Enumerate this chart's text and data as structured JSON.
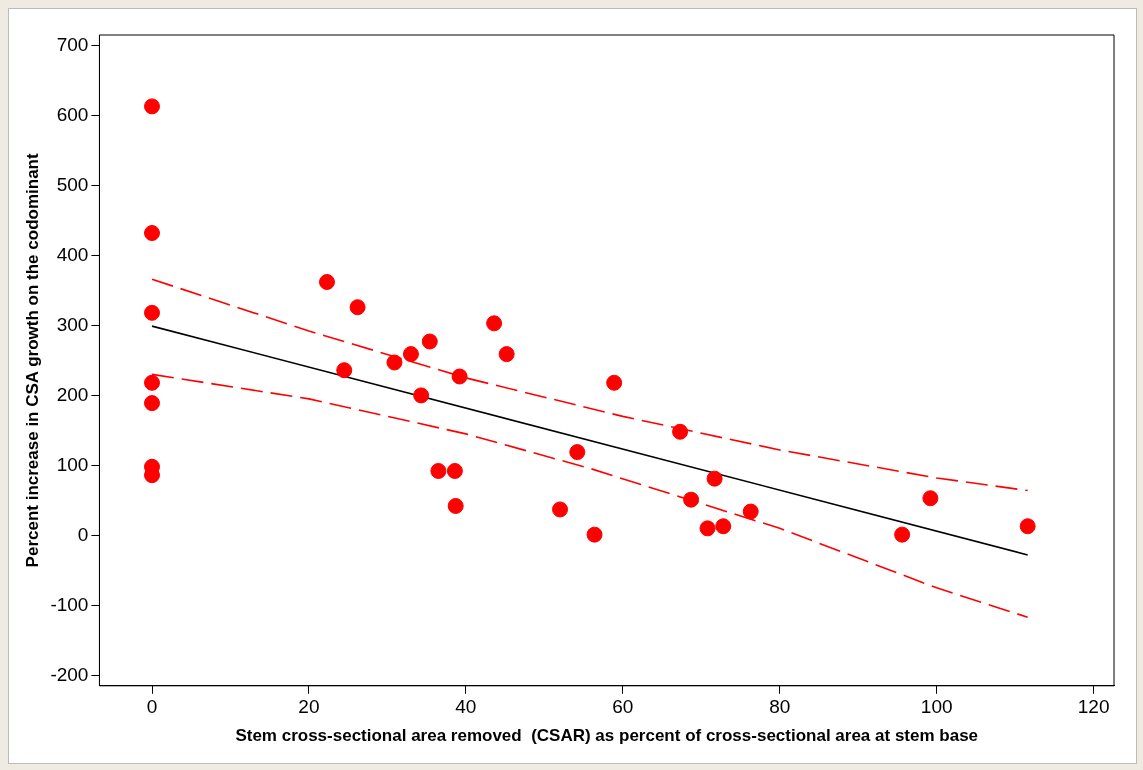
{
  "chart_data": {
    "type": "scatter",
    "xlabel": "Stem cross-sectional area removed  (CSAR) as percent of cross-sectional area at stem base",
    "ylabel": "Percent increase in CSA growth on the codominant",
    "xlim": [
      -6.7,
      122.6
    ],
    "xticks": [
      0,
      20,
      40,
      60,
      80,
      100,
      120
    ],
    "ylim": [
      -215,
      715
    ],
    "yticks": [
      -200,
      -100,
      0,
      100,
      200,
      300,
      400,
      500,
      600,
      700
    ],
    "grid": false,
    "legend": false,
    "series": [
      {
        "marker": "circle",
        "color": "#ff0000",
        "x": [
          0,
          0,
          0,
          0,
          0,
          0,
          0,
          22.3,
          24.5,
          26.2,
          30.9,
          33.0,
          34.3,
          35.4,
          36.5,
          38.6,
          39.2,
          38.7,
          43.6,
          45.2,
          52.0,
          54.2,
          56.4,
          58.9,
          67.3,
          68.7,
          70.8,
          71.7,
          72.8,
          76.3,
          95.6,
          99.2,
          111.6
        ],
        "values": [
          613,
          432,
          318,
          218,
          189,
          98,
          86,
          362,
          236,
          326,
          247,
          259,
          200,
          277,
          92,
          92,
          227,
          42,
          303,
          259,
          37,
          119,
          1,
          218,
          148,
          51,
          10,
          81,
          13,
          34,
          1,
          53,
          13
        ]
      },
      {
        "type": "line",
        "marker": "none",
        "line_style": "solid",
        "color": "#000000",
        "x": [
          0,
          111.6
        ],
        "values": [
          299,
          -28
        ]
      },
      {
        "type": "line",
        "marker": "none",
        "line_style": "dashed",
        "color": "#ff0000",
        "x": [
          0,
          20,
          40,
          60,
          80,
          100,
          111.6
        ],
        "values": [
          366,
          292,
          225,
          170,
          122,
          82,
          64
        ]
      },
      {
        "type": "line",
        "marker": "none",
        "line_style": "dashed",
        "color": "#ff0000",
        "x": [
          0,
          20,
          40,
          56,
          80,
          100,
          111.6
        ],
        "values": [
          230,
          195,
          145,
          95,
          10,
          -75,
          -117
        ]
      }
    ]
  }
}
